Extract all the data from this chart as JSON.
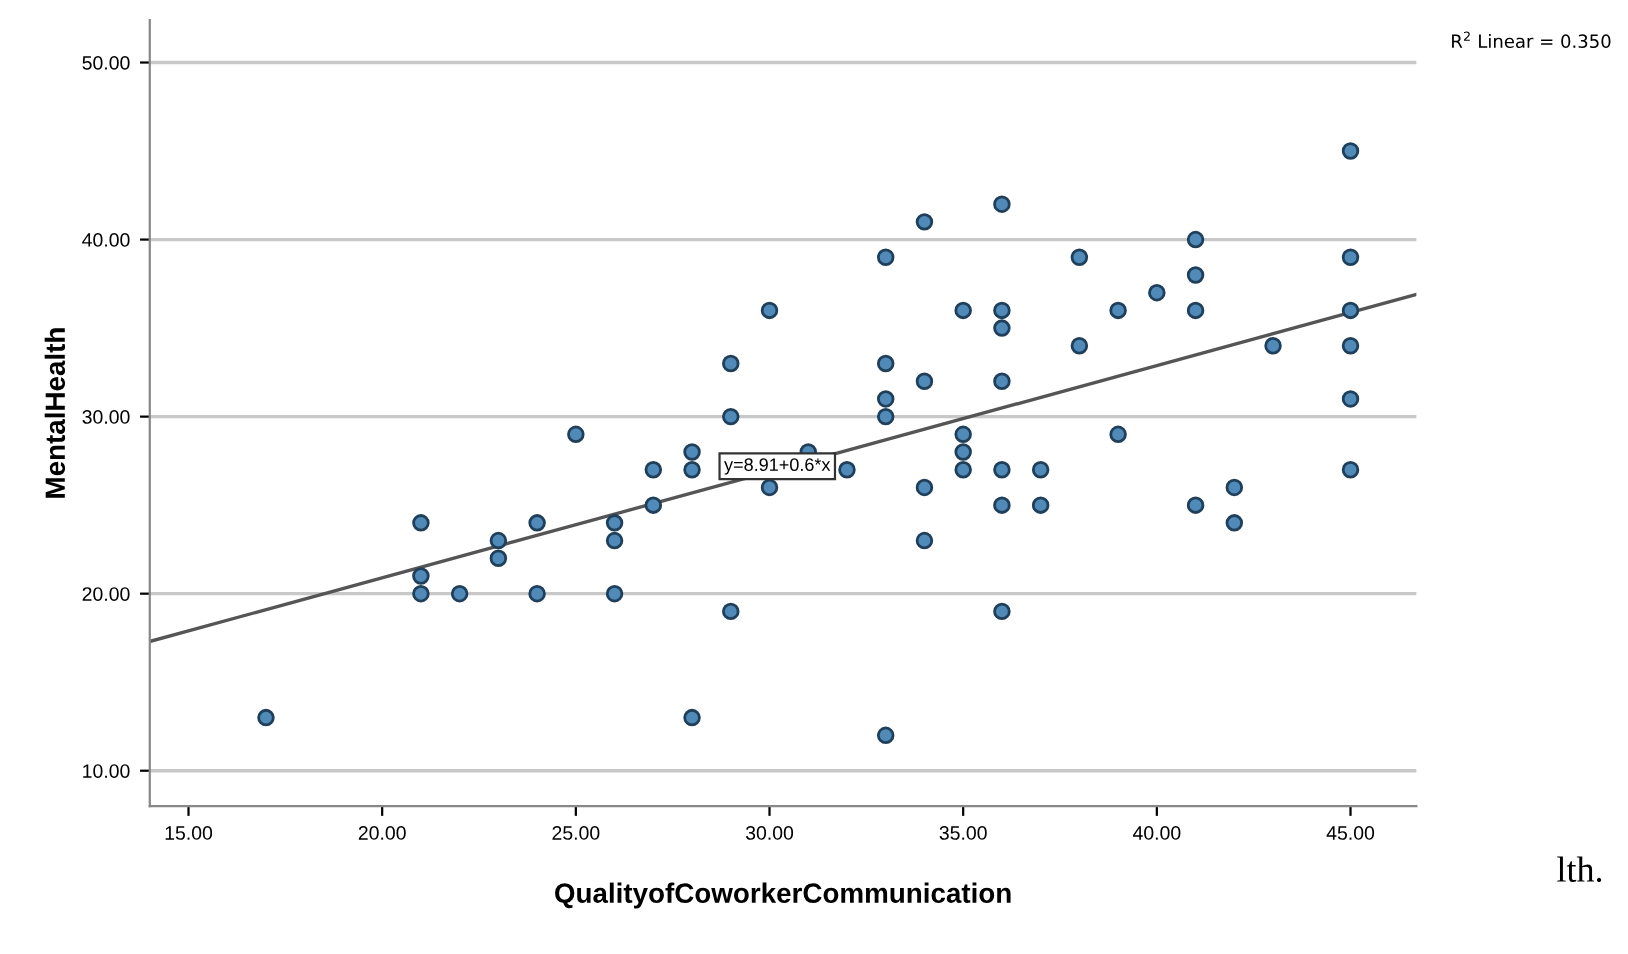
{
  "chart_data": {
    "type": "scatter",
    "xlabel": "QualityofCoworkerCommunication",
    "ylabel": "MentalHealth",
    "x": [
      17,
      21,
      21,
      21,
      22,
      23,
      23,
      24,
      24,
      25,
      26,
      26,
      26,
      27,
      27,
      28,
      28,
      28,
      29,
      29,
      29,
      30,
      30,
      31,
      32,
      33,
      33,
      33,
      33,
      33,
      34,
      34,
      34,
      34,
      35,
      35,
      35,
      35,
      36,
      36,
      36,
      36,
      36,
      36,
      36,
      37,
      37,
      38,
      38,
      39,
      39,
      40,
      41,
      41,
      41,
      41,
      42,
      42,
      43,
      45,
      45,
      45,
      45,
      45,
      45
    ],
    "series": [
      {
        "color": "#4f8ab8",
        "values": [
          13,
          24,
          21,
          20,
          20,
          23,
          22,
          24,
          20,
          29,
          24,
          23,
          20,
          27,
          25,
          28,
          27,
          13,
          33,
          30,
          19,
          36,
          26,
          28,
          27,
          39,
          33,
          31,
          30,
          12,
          41,
          32,
          26,
          23,
          36,
          29,
          28,
          27,
          42,
          36,
          35,
          32,
          27,
          25,
          19,
          27,
          25,
          39,
          34,
          36,
          29,
          37,
          40,
          38,
          36,
          25,
          26,
          24,
          34,
          45,
          39,
          36,
          34,
          31,
          27
        ]
      },
      {
        "type": "line",
        "marker": "none",
        "color": "#555555",
        "x": [
          14,
          46.7
        ],
        "values": [
          17.3,
          36.9
        ]
      }
    ],
    "marker": "circle",
    "grid": "y",
    "xlim": [
      14,
      46.7
    ],
    "ylim": [
      8,
      52.4
    ],
    "xticks": [
      {
        "value": 15,
        "label": "15.00"
      },
      {
        "value": 20,
        "label": "20.00"
      },
      {
        "value": 25,
        "label": "25.00"
      },
      {
        "value": 30,
        "label": "30.00"
      },
      {
        "value": 35,
        "label": "35.00"
      },
      {
        "value": 40,
        "label": "40.00"
      },
      {
        "value": 45,
        "label": "45.00"
      }
    ],
    "yticks": [
      {
        "value": 10,
        "label": "10.00"
      },
      {
        "value": 20,
        "label": "20.00"
      },
      {
        "value": 30,
        "label": "30.00"
      },
      {
        "value": 40,
        "label": "40.00"
      },
      {
        "value": 50,
        "label": "50.00"
      }
    ],
    "annotations": [
      {
        "text": "y=8.91+0.6*x",
        "x": 30.2,
        "y": 27.2
      },
      "R$^{2}$ Linear = 0.350",
      "lth."
    ]
  }
}
